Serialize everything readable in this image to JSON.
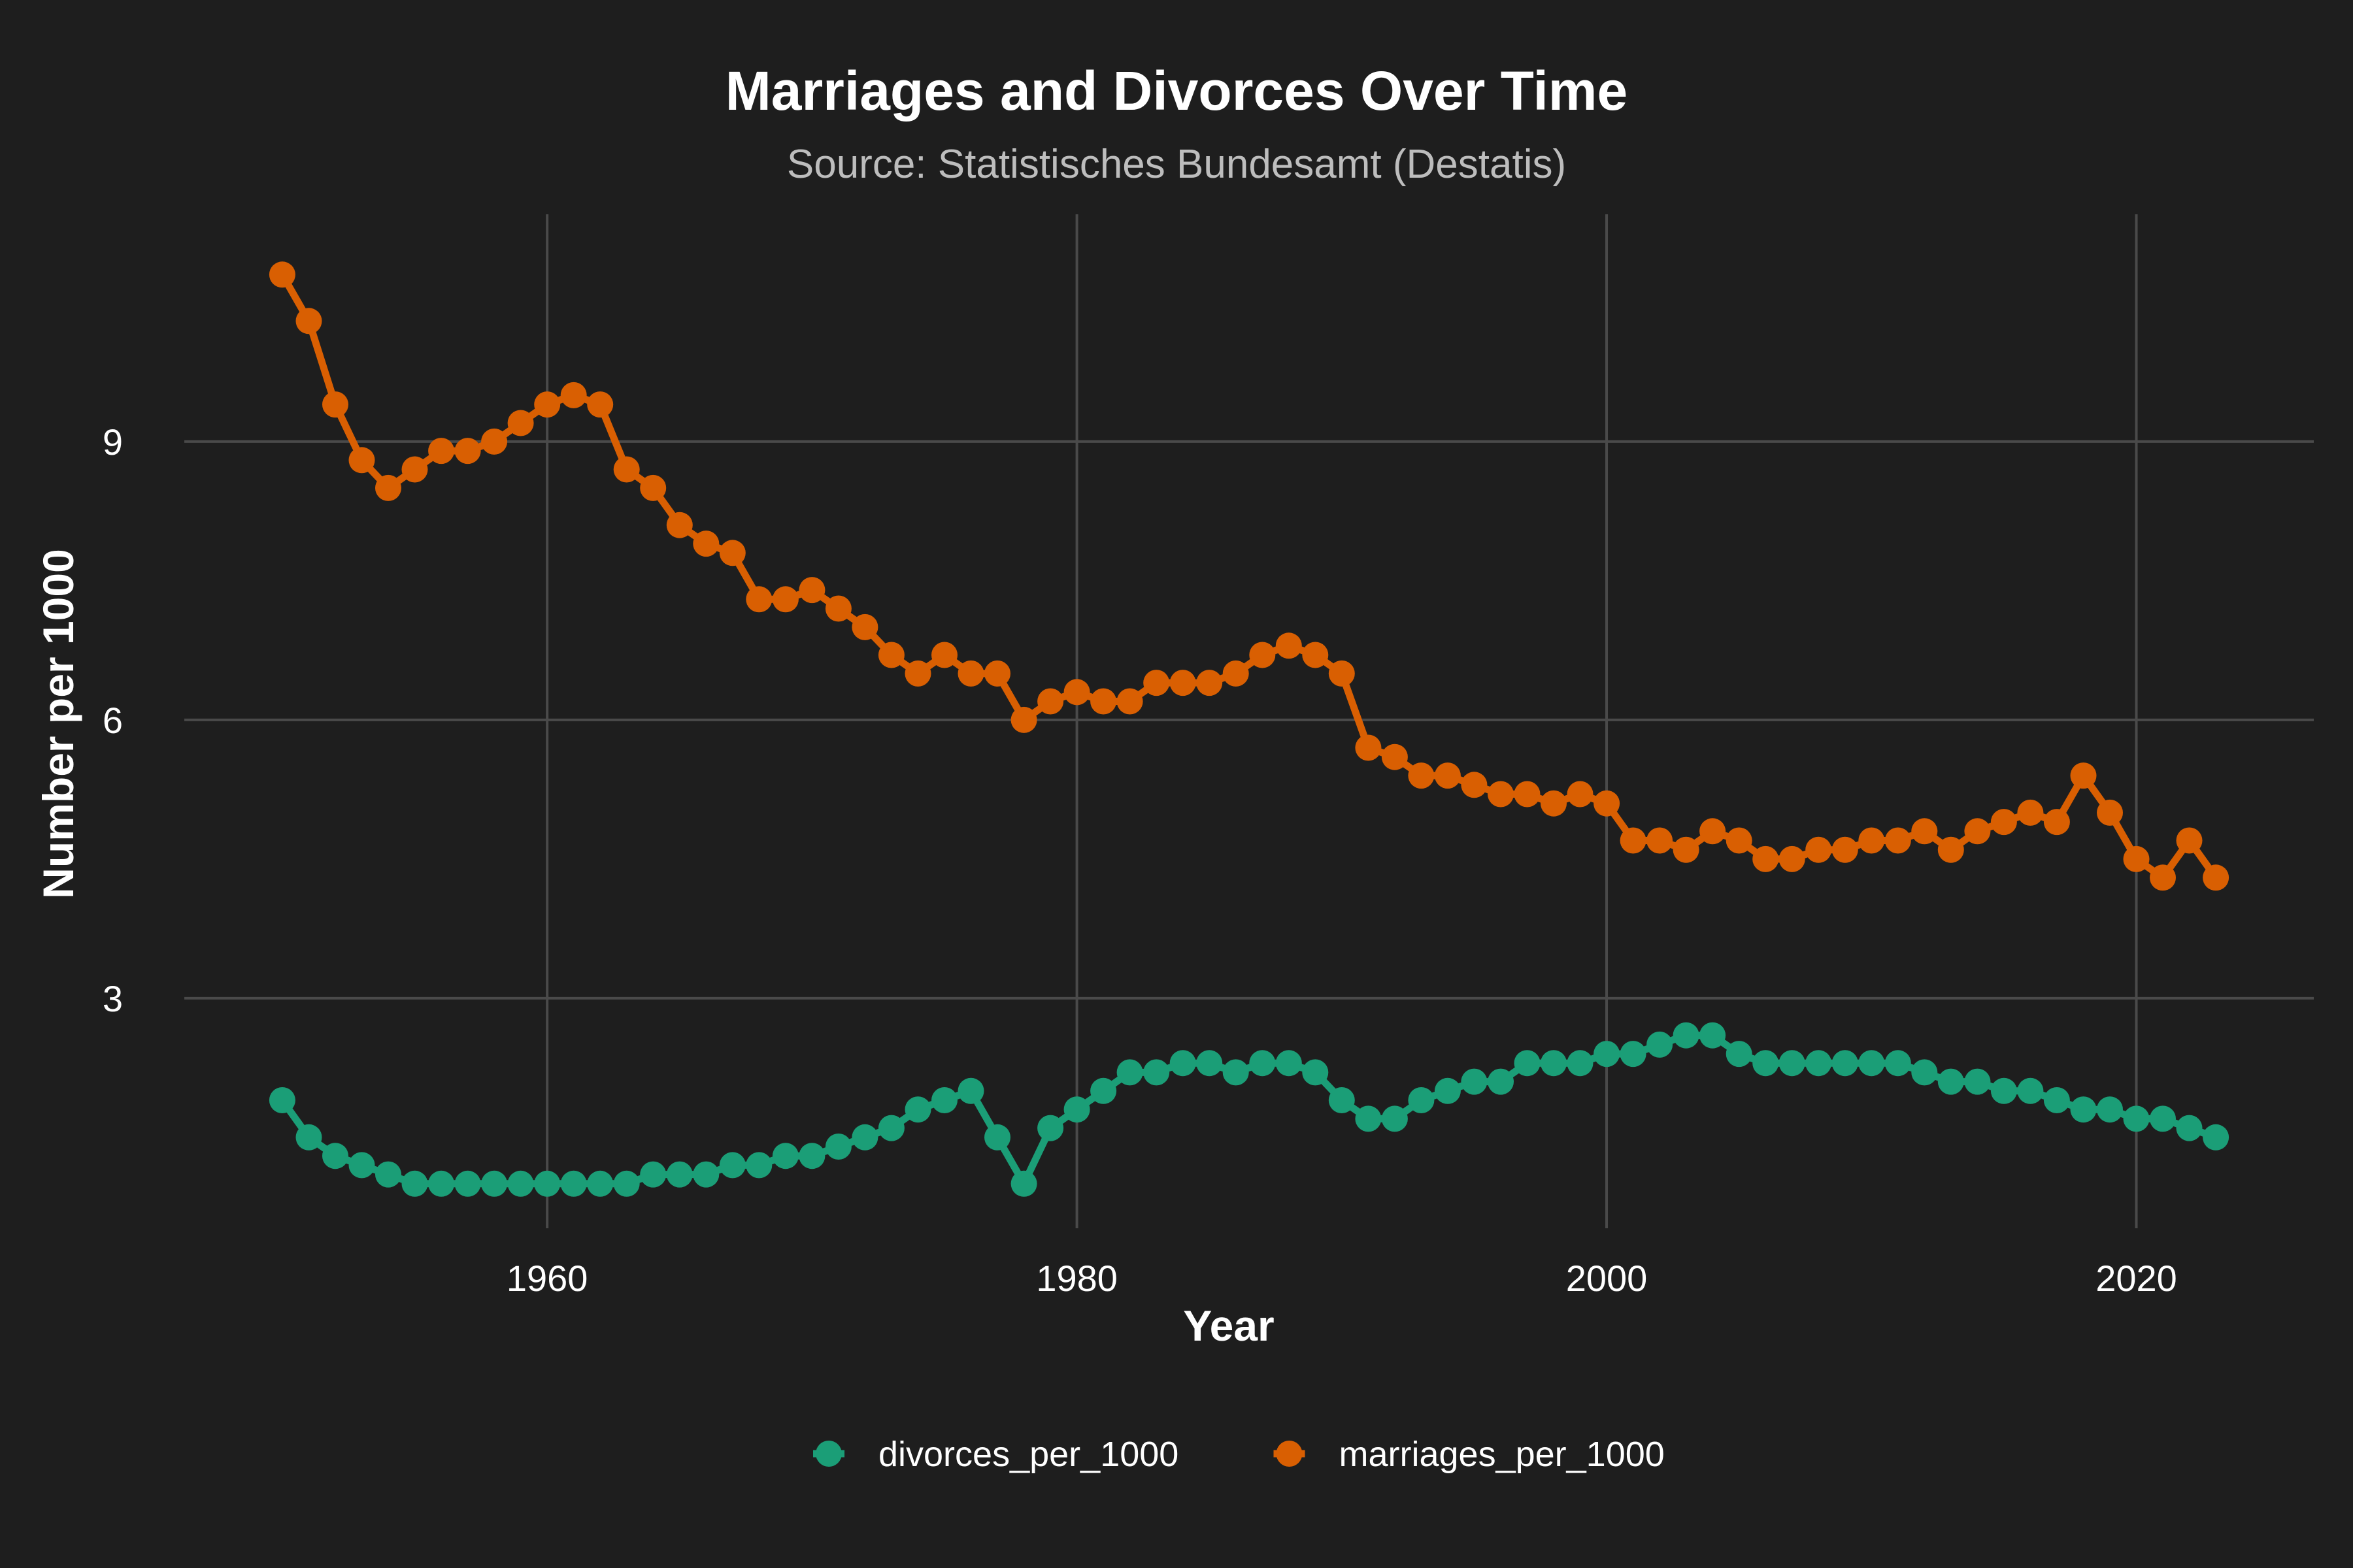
{
  "chart_data": {
    "type": "line",
    "title": "Marriages and Divorces Over Time",
    "subtitle": "Source: Statistisches Bundesamt (Destatis)",
    "xlabel": "Year",
    "ylabel": "Number per 1000",
    "xlim": [
      1946.3,
      2026.7
    ],
    "ylim": [
      0.52,
      11.45
    ],
    "x_ticks": [
      1960,
      1980,
      2000,
      2020
    ],
    "y_ticks": [
      3,
      6,
      9
    ],
    "grid": true,
    "legend_position": "bottom",
    "x": [
      1950,
      1951,
      1952,
      1953,
      1954,
      1955,
      1956,
      1957,
      1958,
      1959,
      1960,
      1961,
      1962,
      1963,
      1964,
      1965,
      1966,
      1967,
      1968,
      1969,
      1970,
      1971,
      1972,
      1973,
      1974,
      1975,
      1976,
      1977,
      1978,
      1979,
      1980,
      1981,
      1982,
      1983,
      1984,
      1985,
      1986,
      1987,
      1988,
      1989,
      1990,
      1991,
      1992,
      1993,
      1994,
      1995,
      1996,
      1997,
      1998,
      1999,
      2000,
      2001,
      2002,
      2003,
      2004,
      2005,
      2006,
      2007,
      2008,
      2009,
      2010,
      2011,
      2012,
      2013,
      2014,
      2015,
      2016,
      2017,
      2018,
      2019,
      2020,
      2021,
      2022,
      2023
    ],
    "series": [
      {
        "name": "divorces_per_1000",
        "color": "#1b9e77",
        "values": [
          1.9,
          1.5,
          1.3,
          1.2,
          1.1,
          1.0,
          1.0,
          1.0,
          1.0,
          1.0,
          1.0,
          1.0,
          1.0,
          1.0,
          1.1,
          1.1,
          1.1,
          1.2,
          1.2,
          1.3,
          1.3,
          1.4,
          1.5,
          1.6,
          1.8,
          1.9,
          2.0,
          1.5,
          1.0,
          1.6,
          1.8,
          2.0,
          2.2,
          2.2,
          2.3,
          2.3,
          2.2,
          2.3,
          2.3,
          2.2,
          1.9,
          1.7,
          1.7,
          1.9,
          2.0,
          2.1,
          2.1,
          2.3,
          2.3,
          2.3,
          2.4,
          2.4,
          2.5,
          2.6,
          2.6,
          2.4,
          2.3,
          2.3,
          2.3,
          2.3,
          2.3,
          2.3,
          2.2,
          2.1,
          2.1,
          2.0,
          2.0,
          1.9,
          1.8,
          1.8,
          1.7,
          1.7,
          1.6,
          1.5
        ]
      },
      {
        "name": "marriages_per_1000",
        "color": "#d95f02",
        "values": [
          10.8,
          10.3,
          9.4,
          8.8,
          8.5,
          8.7,
          8.9,
          8.9,
          9.0,
          9.2,
          9.4,
          9.5,
          9.4,
          8.7,
          8.5,
          8.1,
          7.9,
          7.8,
          7.3,
          7.3,
          7.4,
          7.2,
          7.0,
          6.7,
          6.5,
          6.7,
          6.5,
          6.5,
          6.0,
          6.2,
          6.3,
          6.2,
          6.2,
          6.4,
          6.4,
          6.4,
          6.5,
          6.7,
          6.8,
          6.7,
          6.5,
          5.7,
          5.6,
          5.4,
          5.4,
          5.3,
          5.2,
          5.2,
          5.1,
          5.2,
          5.1,
          4.7,
          4.7,
          4.6,
          4.8,
          4.7,
          4.5,
          4.5,
          4.6,
          4.6,
          4.7,
          4.7,
          4.8,
          4.6,
          4.8,
          4.9,
          5.0,
          4.9,
          5.4,
          5.0,
          4.5,
          4.3,
          4.7,
          4.3
        ]
      }
    ]
  }
}
